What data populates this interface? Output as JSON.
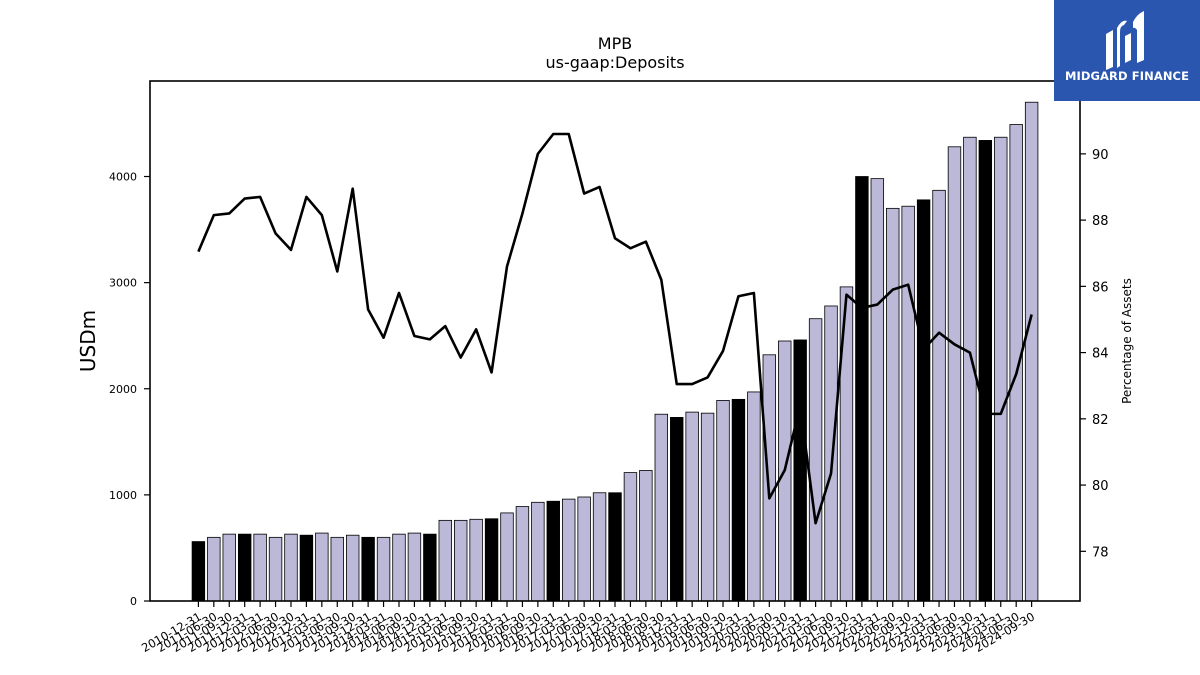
{
  "chart_data": {
    "type": "bar",
    "title": "MPB",
    "subtitle": "us-gaap:Deposits",
    "ylabel": "USDm",
    "y2label": "Percentage of Assets",
    "ylim": [
      0,
      4900
    ],
    "y2lim": [
      76.5,
      92.2
    ],
    "yticks": [
      0,
      1000,
      2000,
      3000,
      4000
    ],
    "y2ticks": [
      78,
      80,
      82,
      84,
      86,
      88,
      90
    ],
    "categories": [
      "2010-12-31",
      "2011-06-30",
      "2011-09-30",
      "2011-12-31",
      "2012-03-31",
      "2012-06-30",
      "2012-09-30",
      "2012-12-31",
      "2013-03-31",
      "2013-06-30",
      "2013-09-30",
      "2013-12-31",
      "2014-03-31",
      "2014-06-30",
      "2014-09-30",
      "2014-12-31",
      "2015-03-31",
      "2015-06-30",
      "2015-09-30",
      "2015-12-31",
      "2016-03-31",
      "2016-06-30",
      "2016-09-30",
      "2016-12-31",
      "2017-03-31",
      "2017-06-30",
      "2017-09-30",
      "2017-12-31",
      "2018-03-31",
      "2018-06-30",
      "2018-09-30",
      "2018-12-31",
      "2019-03-31",
      "2019-06-30",
      "2019-09-30",
      "2019-12-31",
      "2020-03-31",
      "2020-06-30",
      "2020-09-30",
      "2020-12-31",
      "2021-03-31",
      "2021-06-30",
      "2021-09-30",
      "2021-12-31",
      "2022-03-31",
      "2022-06-30",
      "2022-09-30",
      "2022-12-31",
      "2023-03-31",
      "2023-06-30",
      "2023-09-30",
      "2023-12-31",
      "2024-03-31",
      "2024-06-30",
      "2024-09-30"
    ],
    "series": [
      {
        "kind": "bar",
        "values": [
          560,
          600,
          630,
          630,
          630,
          600,
          630,
          620,
          640,
          600,
          620,
          600,
          600,
          630,
          640,
          630,
          760,
          760,
          770,
          775,
          830,
          890,
          930,
          940,
          960,
          980,
          1020,
          1020,
          1210,
          1230,
          1760,
          1730,
          1780,
          1770,
          1890,
          1900,
          1970,
          2320,
          2450,
          2460,
          2660,
          2780,
          2960,
          4000,
          3980,
          3700,
          3720,
          3780,
          3870,
          4280,
          4370,
          4340,
          4370,
          4490,
          4700
        ],
        "year_end": [
          true,
          false,
          false,
          true,
          false,
          false,
          false,
          true,
          false,
          false,
          false,
          true,
          false,
          false,
          false,
          true,
          false,
          false,
          false,
          true,
          false,
          false,
          false,
          true,
          false,
          false,
          false,
          true,
          false,
          false,
          false,
          true,
          false,
          false,
          false,
          true,
          false,
          false,
          false,
          true,
          false,
          false,
          false,
          true,
          false,
          false,
          false,
          true,
          false,
          false,
          false,
          true,
          false,
          false,
          false
        ]
      },
      {
        "kind": "line",
        "axis": "right",
        "values": [
          87.05,
          88.15,
          88.2,
          88.65,
          88.7,
          87.6,
          87.1,
          88.7,
          88.15,
          86.45,
          88.95,
          85.3,
          84.45,
          85.8,
          84.5,
          84.4,
          84.8,
          83.85,
          84.7,
          83.4,
          86.6,
          88.2,
          90.0,
          90.6,
          90.6,
          88.8,
          89.0,
          87.45,
          87.15,
          87.35,
          86.2,
          83.05,
          83.05,
          83.25,
          84.05,
          85.7,
          85.8,
          79.6,
          80.45,
          82.4,
          78.85,
          80.35,
          85.75,
          85.35,
          85.45,
          85.9,
          86.05,
          84.1,
          84.6,
          84.25,
          84.0,
          82.15,
          82.15,
          83.35,
          85.15
        ]
      }
    ],
    "colors": {
      "bar_fill": "#bbb8d8",
      "bar_year_end": "#000000",
      "line": "#000000"
    },
    "grid": false,
    "legend": "none"
  },
  "logo": {
    "text": "MIDGARD FINANCE",
    "color": "#2a56b0"
  }
}
